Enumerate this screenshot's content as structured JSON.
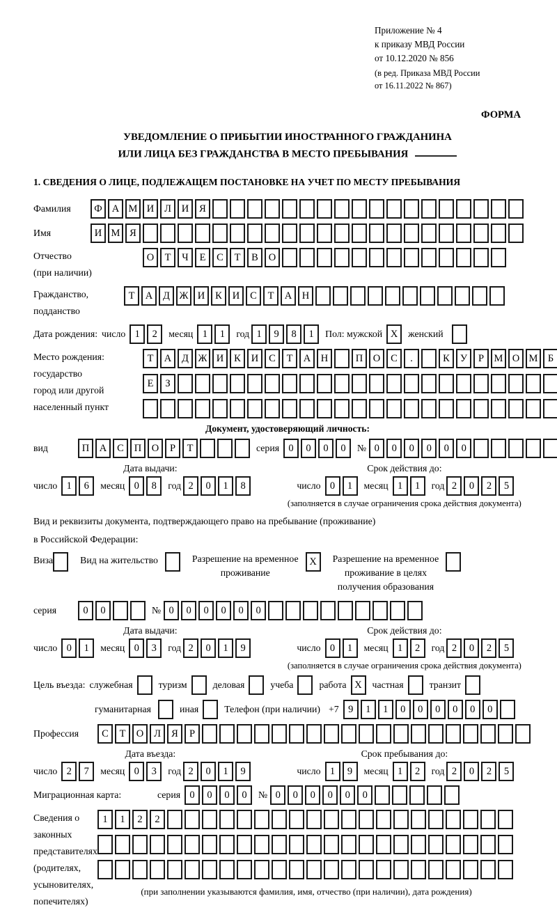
{
  "colors": {
    "ink": "#000000",
    "box_border": "#181818",
    "background": "#ffffff"
  },
  "header": {
    "line1": "Приложение № 4",
    "line2": "к приказу МВД России",
    "line3": "от 10.12.2020 № 856",
    "line4": "(в ред. Приказа МВД России",
    "line5": "от 16.11.2022 № 867)",
    "form_label": "ФОРМА"
  },
  "title": {
    "line1": "УВЕДОМЛЕНИЕ О ПРИБЫТИИ ИНОСТРАННОГО ГРАЖДАНИНА",
    "line2": "ИЛИ ЛИЦА БЕЗ ГРАЖДАНСТВА В МЕСТО ПРЕБЫВАНИЯ"
  },
  "section_heading": "1. СВЕДЕНИЯ О ЛИЦЕ, ПОДЛЕЖАЩЕМ ПОСТАНОВКЕ НА УЧЕТ ПО МЕСТУ ПРЕБЫВАНИЯ",
  "labels": {
    "surname": "Фамилия",
    "name": "Имя",
    "patronymic_1": "Отчество",
    "patronymic_2": "(при наличии)",
    "citizenship_1": "Гражданство,",
    "citizenship_2": "подданство",
    "birth_date": "Дата рождения:",
    "day": "число",
    "month": "месяц",
    "year": "год",
    "sex_male": "Пол: мужской",
    "sex_female": "женский",
    "birthplace_1": "Место рождения:",
    "birthplace_2": "государство",
    "birthplace_3": "город или другой",
    "birthplace_4": "населенный пункт",
    "identity_doc_heading": "Документ, удостоверяющий личность:",
    "doc_type": "вид",
    "series": "серия",
    "number": "№",
    "issue_date": "Дата выдачи:",
    "valid_until": "Срок действия до:",
    "valid_note": "(заполняется в случае ограничения срока действия документа)",
    "residence_line1": "Вид и реквизиты документа, подтверждающего право на пребывание (проживание)",
    "residence_line2": "в Российской Федерации:",
    "visa": "Виза",
    "residence_permit": "Вид на жительство",
    "rvp_1": "Разрешение на временное",
    "rvp_2": "проживание",
    "rvp_edu_1": "Разрешение на временное",
    "rvp_edu_2": "проживание в целях",
    "rvp_edu_3": "получения образования",
    "purpose": "Цель въезда:",
    "purpose_business": "служебная",
    "purpose_tourism": "туризм",
    "purpose_commercial": "деловая",
    "purpose_study": "учеба",
    "purpose_work": "работа",
    "purpose_private": "частная",
    "purpose_transit": "транзит",
    "purpose_humanitarian": "гуманитарная",
    "purpose_other": "иная",
    "phone": "Телефон (при наличии)",
    "phone_prefix": "+7",
    "profession": "Профессия",
    "entry_date": "Дата въезда:",
    "stay_until": "Срок пребывания до:",
    "migration_card": "Миграционная карта:",
    "rep_1": "Сведения о",
    "rep_2": "законных",
    "rep_3": "представителях",
    "rep_4": "(родителях,",
    "rep_5": "усыновителях,",
    "rep_6": "попечителях)",
    "rep_hint": "(при заполнении указываются фамилия, имя, отчество (при наличии), дата рождения)"
  },
  "checks": {
    "sex_male": "X",
    "sex_female": "",
    "visa": "",
    "residence_permit": "",
    "rvp": "X",
    "rvp_edu": "",
    "purpose_business": "",
    "purpose_tourism": "",
    "purpose_commercial": "",
    "purpose_study": "",
    "purpose_work": "X",
    "purpose_private": "",
    "purpose_transit": "",
    "purpose_humanitarian": "",
    "purpose_other": ""
  },
  "cells": {
    "surname": [
      "Ф",
      "А",
      "М",
      "И",
      "Л",
      "И",
      "Я",
      "",
      "",
      "",
      "",
      "",
      "",
      "",
      "",
      "",
      "",
      "",
      "",
      "",
      "",
      "",
      "",
      "",
      ""
    ],
    "name": [
      "И",
      "М",
      "Я",
      "",
      "",
      "",
      "",
      "",
      "",
      "",
      "",
      "",
      "",
      "",
      "",
      "",
      "",
      "",
      "",
      "",
      "",
      "",
      "",
      "",
      ""
    ],
    "patronymic": [
      "О",
      "Т",
      "Ч",
      "Е",
      "С",
      "Т",
      "В",
      "О",
      "",
      "",
      "",
      "",
      "",
      "",
      "",
      "",
      "",
      "",
      "",
      "",
      ""
    ],
    "citizenship": [
      "Т",
      "А",
      "Д",
      "Ж",
      "И",
      "К",
      "И",
      "С",
      "Т",
      "А",
      "Н",
      "",
      "",
      "",
      "",
      "",
      "",
      "",
      "",
      "",
      "",
      ""
    ],
    "birth_day": [
      "1",
      "2"
    ],
    "birth_month": [
      "1",
      "1"
    ],
    "birth_year": [
      "1",
      "9",
      "8",
      "1"
    ],
    "birthplace_row1": [
      "Т",
      "А",
      "Д",
      "Ж",
      "И",
      "К",
      "И",
      "С",
      "Т",
      "А",
      "Н",
      "",
      "П",
      "О",
      "С",
      ".",
      "",
      "К",
      "У",
      "Р",
      "М",
      "О",
      "М",
      "Б"
    ],
    "birthplace_row2": [
      "Е",
      "З",
      "",
      "",
      "",
      "",
      "",
      "",
      "",
      "",
      "",
      "",
      "",
      "",
      "",
      "",
      "",
      "",
      "",
      "",
      "",
      "",
      "",
      ""
    ],
    "birthplace_row3": [
      "",
      "",
      "",
      "",
      "",
      "",
      "",
      "",
      "",
      "",
      "",
      "",
      "",
      "",
      "",
      "",
      "",
      "",
      "",
      "",
      "",
      "",
      "",
      ""
    ],
    "doc_type": [
      "П",
      "А",
      "С",
      "П",
      "О",
      "Р",
      "Т",
      "",
      "",
      ""
    ],
    "doc_series": [
      "0",
      "0",
      "0",
      "0"
    ],
    "doc_number": [
      "0",
      "0",
      "0",
      "0",
      "0",
      "0",
      "",
      "",
      "",
      "",
      ""
    ],
    "issue1_day": [
      "1",
      "6"
    ],
    "issue1_month": [
      "0",
      "8"
    ],
    "issue1_year": [
      "2",
      "0",
      "1",
      "8"
    ],
    "valid1_day": [
      "0",
      "1"
    ],
    "valid1_month": [
      "1",
      "1"
    ],
    "valid1_year": [
      "2",
      "0",
      "2",
      "5"
    ],
    "res_series": [
      "0",
      "0",
      "",
      ""
    ],
    "res_number": [
      "0",
      "0",
      "0",
      "0",
      "0",
      "0",
      "",
      "",
      "",
      "",
      "",
      "",
      "",
      "",
      ""
    ],
    "issue2_day": [
      "0",
      "1"
    ],
    "issue2_month": [
      "0",
      "3"
    ],
    "issue2_year": [
      "2",
      "0",
      "1",
      "9"
    ],
    "valid2_day": [
      "0",
      "1"
    ],
    "valid2_month": [
      "1",
      "2"
    ],
    "valid2_year": [
      "2",
      "0",
      "2",
      "5"
    ],
    "phone": [
      "9",
      "1",
      "1",
      "0",
      "0",
      "0",
      "0",
      "0",
      "0",
      ""
    ],
    "profession": [
      "С",
      "Т",
      "О",
      "Л",
      "Я",
      "Р",
      "",
      "",
      "",
      "",
      "",
      "",
      "",
      "",
      "",
      "",
      "",
      "",
      "",
      "",
      "",
      "",
      "",
      "",
      ""
    ],
    "entry_day": [
      "2",
      "7"
    ],
    "entry_month": [
      "0",
      "3"
    ],
    "entry_year": [
      "2",
      "0",
      "1",
      "9"
    ],
    "stay_day": [
      "1",
      "9"
    ],
    "stay_month": [
      "1",
      "2"
    ],
    "stay_year": [
      "2",
      "0",
      "2",
      "5"
    ],
    "mig_series": [
      "0",
      "0",
      "0",
      "0"
    ],
    "mig_number": [
      "0",
      "0",
      "0",
      "0",
      "0",
      "0",
      "",
      "",
      "",
      "",
      ""
    ],
    "rep_row1": [
      "1",
      "1",
      "2",
      "2",
      "",
      "",
      "",
      "",
      "",
      "",
      "",
      "",
      "",
      "",
      "",
      "",
      "",
      "",
      "",
      "",
      "",
      "",
      "",
      ""
    ],
    "rep_row2": [
      "",
      "",
      "",
      "",
      "",
      "",
      "",
      "",
      "",
      "",
      "",
      "",
      "",
      "",
      "",
      "",
      "",
      "",
      "",
      "",
      "",
      "",
      "",
      ""
    ],
    "rep_row3": [
      "",
      "",
      "",
      "",
      "",
      "",
      "",
      "",
      "",
      "",
      "",
      "",
      "",
      "",
      "",
      "",
      "",
      "",
      "",
      "",
      "",
      "",
      "",
      ""
    ]
  }
}
